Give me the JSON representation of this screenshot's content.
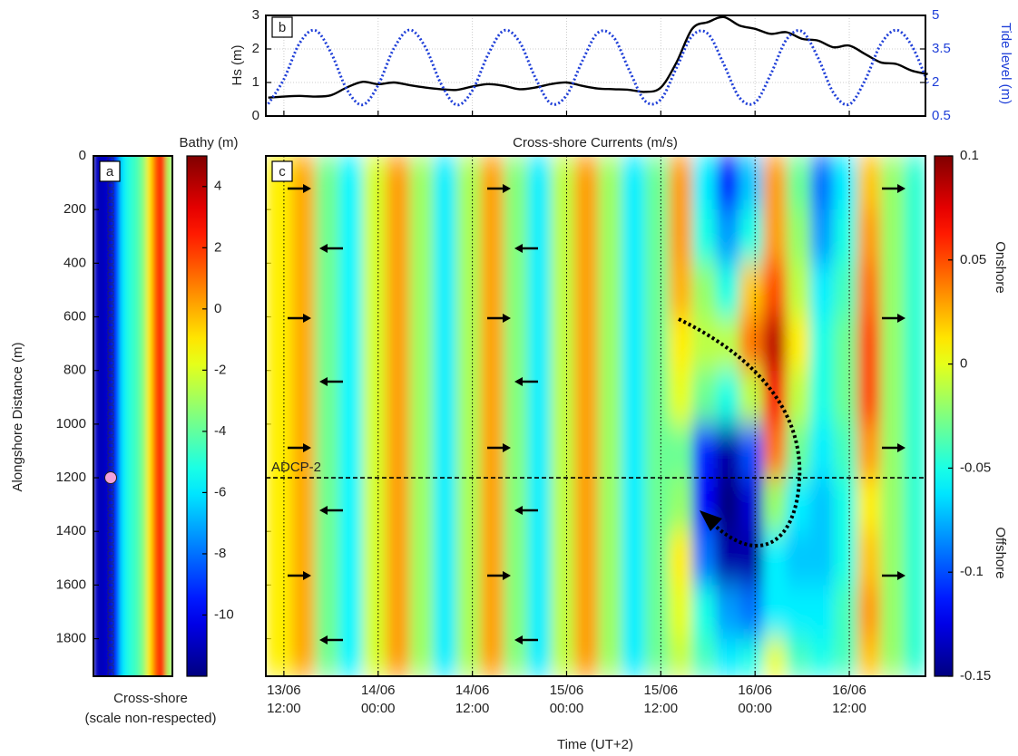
{
  "chart_data": [
    {
      "type": "line",
      "label": "b",
      "x": [
        10,
        12,
        14,
        16,
        18,
        20,
        22,
        24,
        26,
        28,
        30,
        32,
        34,
        36,
        38,
        40,
        42,
        44,
        46,
        48,
        50,
        52,
        54,
        56,
        58,
        60,
        62,
        64,
        66,
        68,
        70,
        72,
        74,
        76,
        78,
        80,
        82,
        84,
        86,
        88,
        90,
        92,
        94
      ],
      "xlim": [
        9.7,
        93.7
      ],
      "xticks": [
        12,
        24,
        36,
        48,
        60,
        72,
        84
      ],
      "ylabel": "Hs (m)",
      "ylim": [
        0,
        3
      ],
      "yticks": [
        0,
        1,
        2,
        3
      ],
      "y2label": "Tide level (m)",
      "y2lim": [
        0.5,
        5
      ],
      "y2ticks": [
        0.5,
        2,
        3.5,
        5
      ],
      "grid": true,
      "series": [
        {
          "color": "#000000",
          "values": [
            0.55,
            0.58,
            0.6,
            0.58,
            0.62,
            0.85,
            1.02,
            0.95,
            1.0,
            0.92,
            0.85,
            0.8,
            0.78,
            0.88,
            0.95,
            0.9,
            0.8,
            0.85,
            0.95,
            1.0,
            0.9,
            0.82,
            0.8,
            0.78,
            0.72,
            0.85,
            1.6,
            2.6,
            2.8,
            2.95,
            2.7,
            2.6,
            2.45,
            2.5,
            2.3,
            2.25,
            2.05,
            2.1,
            1.85,
            1.6,
            1.55,
            1.35,
            1.25
          ]
        },
        {
          "color": "#1f3fd8",
          "axis": "y2",
          "values": [
            1.04,
            2.15,
            3.76,
            4.33,
            3.33,
            1.7,
            1.0,
            1.88,
            3.52,
            4.35,
            3.59,
            1.95,
            1.0,
            1.64,
            3.25,
            4.32,
            3.82,
            2.23,
            1.06,
            1.43,
            2.96,
            4.23,
            4.02,
            2.53,
            1.17,
            1.24,
            2.66,
            4.09,
            4.18,
            2.83,
            1.33,
            1.1,
            2.37,
            3.92,
            4.28,
            3.12,
            1.53,
            1.02,
            2.09,
            3.7,
            4.34,
            3.62,
            1.98
          ]
        }
      ]
    },
    {
      "type": "bathymetry",
      "label": "a",
      "ylabel": "Alongshore Distance (m)",
      "xlabel": [
        "Cross-shore",
        "(scale non-respected)"
      ],
      "ylim": [
        0,
        1940
      ],
      "yticks": [
        0,
        200,
        400,
        600,
        800,
        1000,
        1200,
        1400,
        1600,
        1800
      ],
      "profile": [
        -11,
        -11,
        -10.5,
        -9,
        -6,
        -5,
        -4.5,
        -3.5,
        -1,
        1.5,
        2.5,
        -3
      ],
      "clim": [
        -12,
        5
      ],
      "colorbar_label": "Bathy (m)",
      "colorbar_ticks": [
        4,
        2,
        0,
        -2,
        -4,
        -6,
        -8,
        -10
      ]
    },
    {
      "type": "heatmap",
      "label": "c",
      "title": "Cross-shore Currents (m/s)",
      "xlabel": "Time (UT+2)",
      "xlim": [
        9.7,
        93.7
      ],
      "xticks": [
        {
          "value": 12,
          "label": "13/06 12:00"
        },
        {
          "value": 24,
          "label": "14/06 00:00"
        },
        {
          "value": 36,
          "label": "14/06 12:00"
        },
        {
          "value": 48,
          "label": "15/06 00:00"
        },
        {
          "value": 60,
          "label": "15/06 12:00"
        },
        {
          "value": 72,
          "label": "16/06 00:00"
        },
        {
          "value": 84,
          "label": "16/06 12:00"
        }
      ],
      "ylim": [
        0,
        1940
      ],
      "x": [
        11.5,
        14.5,
        17.5,
        20.5,
        23.5,
        26.5,
        29.5,
        32.5,
        35.5,
        38.5,
        41.5,
        44.5,
        47.5,
        50.5,
        53.5,
        56.5,
        59.5,
        62.5,
        65.5,
        68.5,
        71.5,
        74.5,
        77.5,
        80.5,
        83.5,
        86.5,
        89.5,
        92.5
      ],
      "y": [
        100,
        300,
        500,
        700,
        900,
        1100,
        1300,
        1500,
        1700,
        1900
      ],
      "z": [
        [
          0.01,
          0.01,
          0.01,
          0.01,
          0.01,
          0.01,
          0.01,
          0.01,
          0.01,
          0.01
        ],
        [
          0.027,
          0.027,
          0.027,
          0.027,
          0.027,
          0.027,
          0.027,
          0.027,
          0.027,
          0.027
        ],
        [
          -0.029,
          -0.029,
          -0.029,
          -0.029,
          -0.029,
          -0.029,
          -0.029,
          -0.029,
          -0.029,
          -0.029
        ],
        [
          -0.058,
          -0.058,
          -0.058,
          -0.058,
          -0.058,
          -0.058,
          -0.058,
          -0.058,
          -0.058,
          -0.058
        ],
        [
          -0.004,
          -0.004,
          -0.004,
          -0.004,
          -0.004,
          -0.004,
          -0.004,
          -0.004,
          -0.004,
          -0.004
        ],
        [
          0.03,
          0.03,
          0.03,
          0.03,
          0.03,
          0.03,
          0.03,
          0.03,
          0.03,
          0.03
        ],
        [
          -0.018,
          -0.018,
          -0.018,
          -0.018,
          -0.018,
          -0.018,
          -0.018,
          -0.018,
          -0.018,
          -0.018
        ],
        [
          -0.06,
          -0.06,
          -0.06,
          -0.06,
          -0.06,
          -0.06,
          -0.06,
          -0.06,
          -0.06,
          -0.06
        ],
        [
          -0.015,
          -0.015,
          -0.015,
          -0.015,
          -0.015,
          -0.015,
          -0.015,
          -0.015,
          -0.015,
          -0.015
        ],
        [
          0.029,
          0.029,
          0.029,
          0.029,
          0.029,
          0.029,
          0.029,
          0.029,
          0.029,
          0.029
        ],
        [
          -0.024,
          -0.024,
          -0.024,
          -0.024,
          -0.024,
          -0.024,
          -0.024,
          -0.024,
          -0.024,
          -0.024
        ],
        [
          -0.06,
          -0.06,
          -0.06,
          -0.06,
          -0.06,
          -0.06,
          -0.06,
          -0.06,
          -0.06,
          -0.06
        ],
        [
          -0.01,
          -0.01,
          -0.01,
          -0.01,
          -0.01,
          -0.01,
          -0.01,
          -0.01,
          -0.01,
          -0.01
        ],
        [
          0.03,
          0.03,
          0.03,
          0.03,
          0.03,
          0.03,
          0.03,
          0.03,
          0.03,
          0.03
        ],
        [
          -0.018,
          -0.018,
          -0.018,
          -0.018,
          -0.018,
          -0.018,
          -0.018,
          -0.018,
          -0.018,
          -0.018
        ],
        [
          -0.06,
          -0.06,
          -0.06,
          -0.06,
          -0.06,
          -0.06,
          -0.06,
          -0.06,
          -0.06,
          -0.06
        ],
        [
          -0.03,
          -0.03,
          -0.03,
          -0.03,
          -0.03,
          -0.03,
          -0.03,
          -0.03,
          -0.03,
          -0.03
        ],
        [
          0.03,
          0.03,
          0.025,
          0.01,
          0.0,
          -0.03,
          -0.02,
          0.01,
          0.0,
          -0.01
        ],
        [
          -0.06,
          -0.05,
          -0.02,
          -0.01,
          -0.03,
          -0.11,
          -0.12,
          -0.09,
          -0.05,
          -0.04
        ],
        [
          -0.11,
          -0.08,
          -0.05,
          -0.01,
          -0.05,
          -0.14,
          -0.15,
          -0.14,
          -0.08,
          -0.06
        ],
        [
          -0.07,
          -0.05,
          0.02,
          0.04,
          -0.01,
          -0.1,
          -0.13,
          -0.14,
          -0.09,
          -0.05
        ],
        [
          0.03,
          0.03,
          0.05,
          0.085,
          0.07,
          0.04,
          -0.02,
          -0.06,
          -0.06,
          0.0
        ],
        [
          -0.03,
          -0.02,
          -0.01,
          0.01,
          -0.01,
          -0.03,
          -0.06,
          -0.07,
          -0.06,
          -0.04
        ],
        [
          -0.09,
          -0.08,
          -0.06,
          -0.05,
          -0.05,
          -0.06,
          -0.07,
          -0.07,
          -0.06,
          -0.05
        ],
        [
          -0.06,
          -0.05,
          -0.04,
          -0.03,
          -0.03,
          -0.04,
          -0.05,
          -0.05,
          -0.04,
          -0.04
        ],
        [
          0.02,
          0.03,
          0.04,
          0.05,
          0.05,
          0.03,
          0.01,
          0.02,
          0.03,
          0.02
        ],
        [
          -0.02,
          -0.02,
          -0.02,
          -0.02,
          -0.02,
          -0.02,
          -0.02,
          -0.02,
          -0.02,
          -0.02
        ],
        [
          -0.045,
          -0.045,
          -0.045,
          -0.045,
          -0.045,
          -0.045,
          -0.045,
          -0.045,
          -0.045,
          -0.045
        ]
      ],
      "clim": [
        -0.15,
        0.1
      ],
      "colorbar_ticks": [
        0.1,
        0.05,
        0,
        -0.05,
        -0.1,
        -0.15
      ],
      "colorbar_annotations": [
        "Onshore",
        "Offshore"
      ],
      "annotations": [
        {
          "text": "ADCP-2",
          "y": 1200
        }
      ]
    }
  ]
}
